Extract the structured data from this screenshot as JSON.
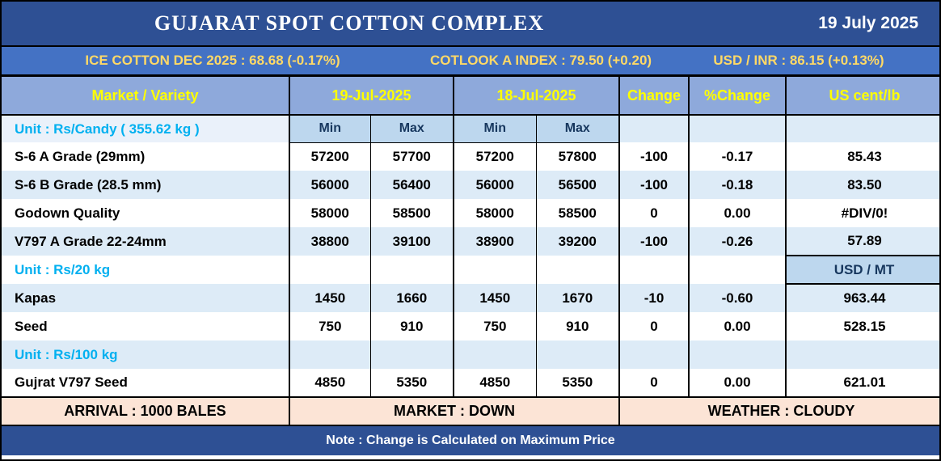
{
  "header": {
    "title": "GUJARAT SPOT COTTON COMPLEX",
    "date": "19 July 2025"
  },
  "ticker": {
    "ice_cotton": "ICE COTTON DEC 2025 : 68.68 (-0.17%)",
    "cotlook": "COTLOOK A INDEX : 79.50 (+0.20)",
    "usd_inr": "USD / INR : 86.15 (+0.13%)"
  },
  "table": {
    "columns": {
      "market_variety": "Market / Variety",
      "date_current": "19-Jul-2025",
      "date_previous": "18-Jul-2025",
      "change": "Change",
      "pct_change": "%Change",
      "us_cent_lb": "US cent/lb"
    },
    "subheader": {
      "unit": "Unit : Rs/Candy ( 355.62 kg )",
      "min": "Min",
      "max": "Max"
    },
    "rows": [
      {
        "type": "data",
        "label": "S-6 A Grade (29mm)",
        "cur_min": "57200",
        "cur_max": "57700",
        "prev_min": "57200",
        "prev_max": "57800",
        "change": "-100",
        "pct_change": "-0.17",
        "us_value": "85.43"
      },
      {
        "type": "data",
        "label": "S-6 B Grade (28.5 mm)",
        "cur_min": "56000",
        "cur_max": "56400",
        "prev_min": "56000",
        "prev_max": "56500",
        "change": "-100",
        "pct_change": "-0.18",
        "us_value": "83.50"
      },
      {
        "type": "data",
        "label": "Godown Quality",
        "cur_min": "58000",
        "cur_max": "58500",
        "prev_min": "58000",
        "prev_max": "58500",
        "change": "0",
        "pct_change": "0.00",
        "us_value": "#DIV/0!"
      },
      {
        "type": "data",
        "label": "V797 A Grade 22-24mm",
        "cur_min": "38800",
        "cur_max": "39100",
        "prev_min": "38900",
        "prev_max": "39200",
        "change": "-100",
        "pct_change": "-0.26",
        "us_value": "57.89"
      },
      {
        "type": "unit",
        "label": "Unit : Rs/20 kg",
        "usd_header": "USD / MT"
      },
      {
        "type": "data",
        "label": "Kapas",
        "cur_min": "1450",
        "cur_max": "1660",
        "prev_min": "1450",
        "prev_max": "1670",
        "change": "-10",
        "pct_change": "-0.60",
        "us_value": "963.44"
      },
      {
        "type": "data",
        "label": "Seed",
        "cur_min": "750",
        "cur_max": "910",
        "prev_min": "750",
        "prev_max": "910",
        "change": "0",
        "pct_change": "0.00",
        "us_value": "528.15"
      },
      {
        "type": "unit",
        "label": "Unit : Rs/100 kg"
      },
      {
        "type": "data",
        "label": "Gujrat V797 Seed",
        "cur_min": "4850",
        "cur_max": "5350",
        "prev_min": "4850",
        "prev_max": "5350",
        "change": "0",
        "pct_change": "0.00",
        "us_value": "621.01"
      }
    ]
  },
  "footer": {
    "arrival": "ARRIVAL : 1000 BALES",
    "market": "MARKET : DOWN",
    "weather": "WEATHER : CLOUDY"
  },
  "note": "Note : Change is Calculated on Maximum Price",
  "colors": {
    "title_bar": "#2E5094",
    "ticker_bar": "#4472C4",
    "ticker_text": "#FFD966",
    "header_row": "#8EA9DB",
    "header_text": "#FFFF00",
    "minmax_cell": "#BDD7EE",
    "minmax_text": "#17375E",
    "stripe_row": "#DDEBF7",
    "unit_text": "#00B0F0",
    "footer_row": "#FCE4D6",
    "note_bar": "#2E5094"
  }
}
